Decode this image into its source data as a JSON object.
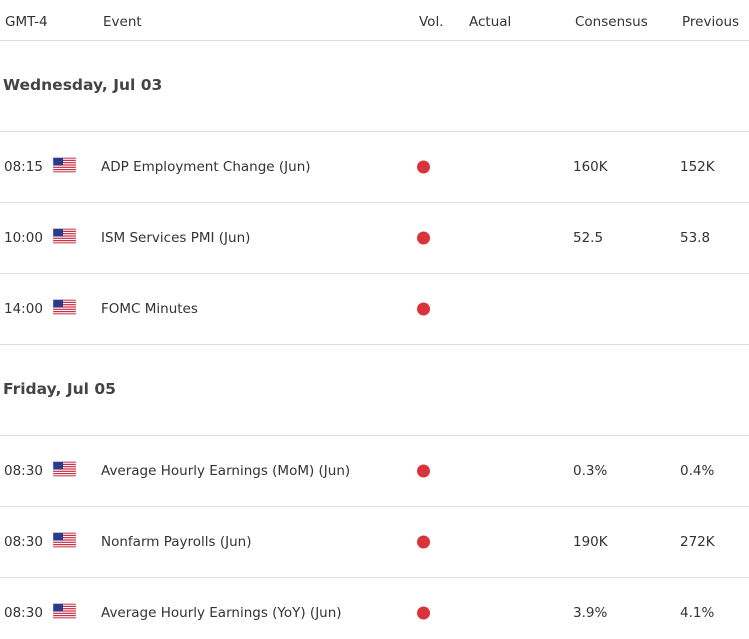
{
  "header": {
    "columns": [
      "GMT-4",
      "Event",
      "Vol.",
      "Actual",
      "Consensus",
      "Previous"
    ]
  },
  "sections": [
    {
      "date": "Wednesday, Jul 03",
      "rows": [
        {
          "time": "08:15",
          "event": "ADP Employment Change (Jun)",
          "consensus": "160K",
          "previous": "152K"
        },
        {
          "time": "10:00",
          "event": "ISM Services PMI (Jun)",
          "consensus": "52.5",
          "previous": "53.8"
        },
        {
          "time": "14:00",
          "event": "FOMC Minutes"
        }
      ]
    },
    {
      "date": "Friday, Jul 05",
      "rows": [
        {
          "time": "08:30",
          "event": "Average Hourly Earnings (MoM) (Jun)",
          "consensus": "0.3%",
          "previous": "0.4%"
        },
        {
          "time": "08:30",
          "event": "Nonfarm Payrolls (Jun)",
          "consensus": "190K",
          "previous": "272K"
        },
        {
          "time": "08:30",
          "event": "Average Hourly Earnings (YoY) (Jun)",
          "consensus": "3.9%",
          "previous": "4.1%"
        }
      ]
    }
  ]
}
